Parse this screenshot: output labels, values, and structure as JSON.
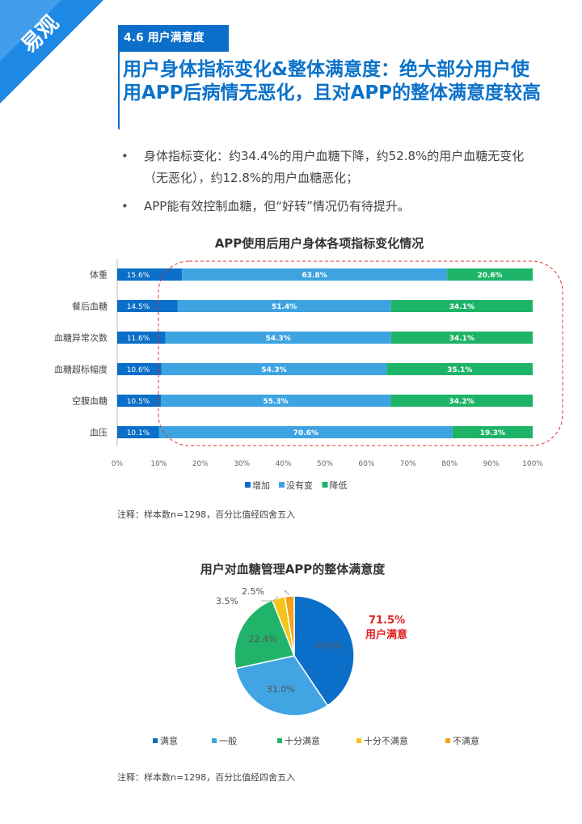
{
  "corner": {
    "logo_text": "易观",
    "colors": {
      "blue": "#1e88e5",
      "light": "#5fb0f0"
    }
  },
  "section_tag": "4.6 用户满意度",
  "headline": "用户身体指标变化&整体满意度：绝大部分用户使用APP后病情无恶化，且对APP的整体满意度较高",
  "bullets": [
    {
      "marker": "•",
      "text": "身体指标变化：约34.4%的用户血糖下降，约52.8%的用户血糖无变化（无恶化），约12.8%的用户血糖恶化；"
    },
    {
      "marker": "•",
      "text": "APP能有效控制血糖，但“好转”情况仍有待提升。"
    }
  ],
  "notes": [
    "注释：样本数n=1298，百分比值经四舍五入",
    "注释：样本数n=1298，百分比值经四舍五入"
  ],
  "chart_data": [
    {
      "type": "bar",
      "orientation": "horizontal",
      "stacked": true,
      "title": "APP使用后用户身体各项指标变化情况",
      "categories": [
        "体重",
        "餐后血糖",
        "血糖异常次数",
        "血糖超标幅度",
        "空腹血糖",
        "血压"
      ],
      "series": [
        {
          "name": "增加",
          "color": "#0b6ec8",
          "values": [
            15.6,
            14.5,
            11.6,
            10.6,
            10.5,
            10.1
          ],
          "labels": [
            "15.6%",
            "14.5%",
            "11.6%",
            "10.6%",
            "10.5%",
            "10.1%"
          ]
        },
        {
          "name": "没有变",
          "color": "#3ea3e1",
          "values": [
            63.8,
            51.4,
            54.3,
            54.3,
            55.3,
            70.6
          ],
          "labels": [
            "63.8%",
            "51.4%",
            "54.3%",
            "54.3%",
            "55.3%",
            "70.6%"
          ]
        },
        {
          "name": "降低",
          "color": "#1eb467",
          "values": [
            20.6,
            34.1,
            34.1,
            35.1,
            34.2,
            19.3
          ],
          "labels": [
            "20.6%",
            "34.1%",
            "34.1%",
            "35.1%",
            "34.2%",
            "19.3%"
          ]
        }
      ],
      "xlim": [
        0,
        100
      ],
      "xticks": [
        "0%",
        "10%",
        "20%",
        "30%",
        "40%",
        "50%",
        "60%",
        "70%",
        "80%",
        "90%",
        "100%"
      ],
      "legend_position": "bottom",
      "highlight": "dashed red rounded box around 没有变 and 降低 segments"
    },
    {
      "type": "pie",
      "title": "用户对血糖管理APP的整体满意度",
      "slices": [
        {
          "name": "满意",
          "value": 40.6,
          "label": "40.6%",
          "color": "#0b6ec8"
        },
        {
          "name": "一般",
          "value": 31.0,
          "label": "31.0%",
          "color": "#41a5e3"
        },
        {
          "name": "十分满意",
          "value": 22.4,
          "label": "22.4%",
          "color": "#22b36a"
        },
        {
          "name": "十分不满意",
          "value": 3.5,
          "label": "3.5%",
          "color": "#f5c518"
        },
        {
          "name": "不满意",
          "value": 2.5,
          "label": "2.5%",
          "color": "#f5a31a"
        }
      ],
      "legend_position": "bottom",
      "callout": {
        "value": "71.5%",
        "text": "用户满意",
        "color": "#e02020"
      }
    }
  ]
}
